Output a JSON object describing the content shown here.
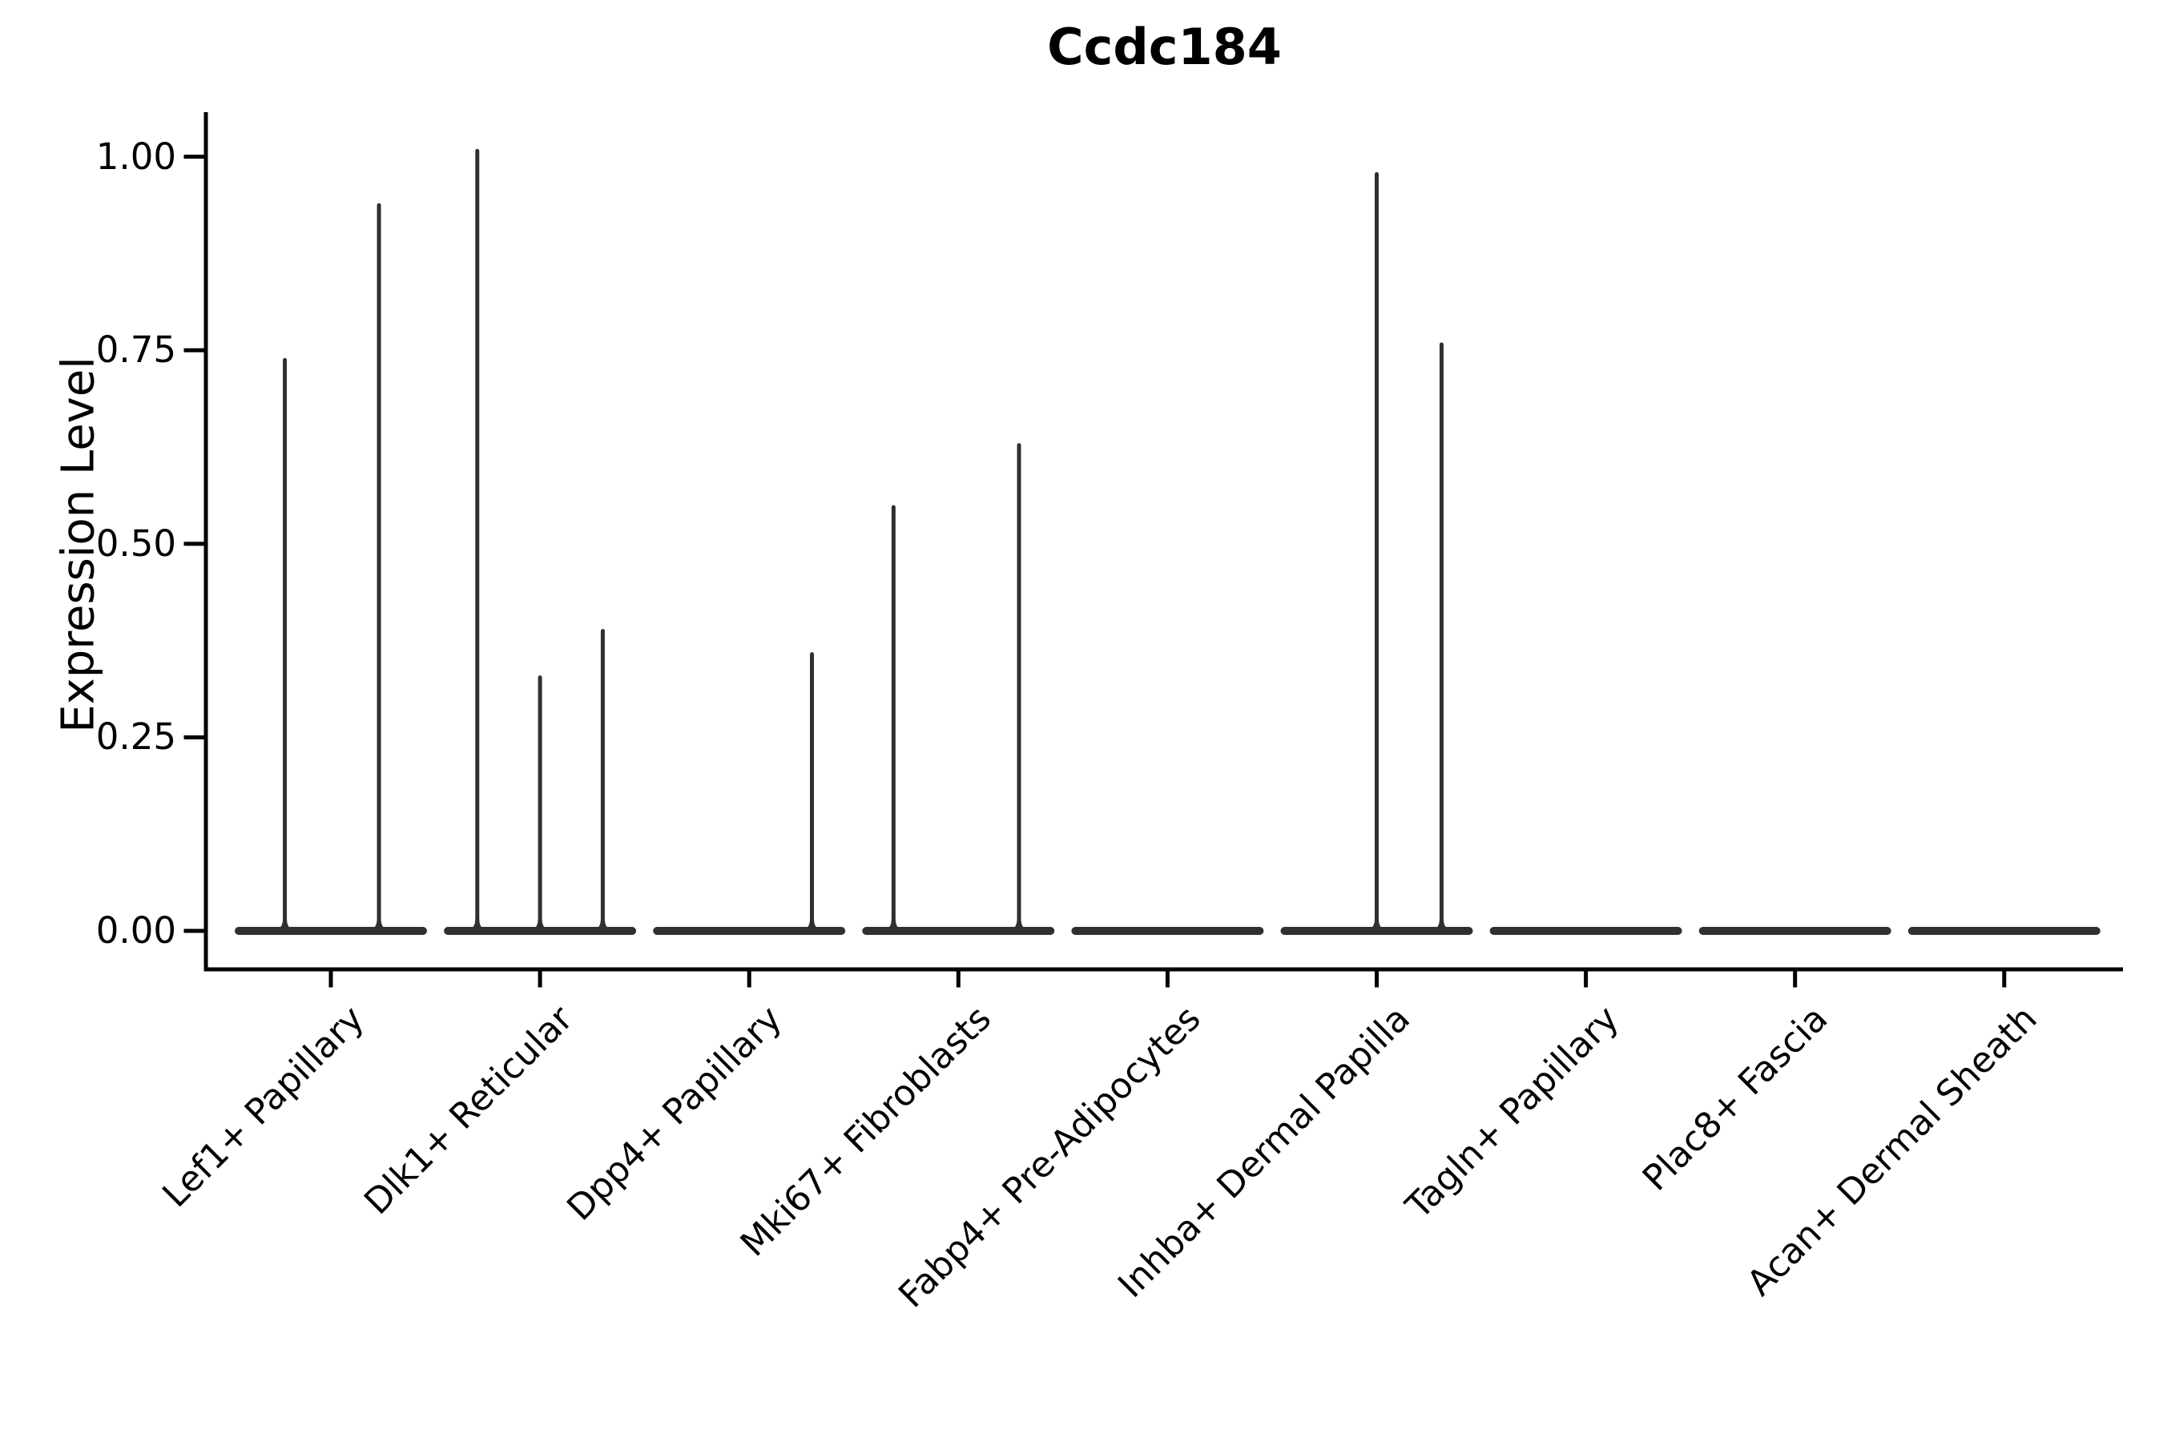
{
  "figure": {
    "title": "Ccdc184"
  },
  "chart_data": {
    "type": "violin",
    "title": "Ccdc184",
    "subtitle": "",
    "xlabel": "",
    "ylabel": "Expression Level",
    "ylim": [
      -0.05,
      1.06
    ],
    "grid": false,
    "legend": false,
    "yticks": [
      {
        "label": "1.00",
        "value": 1.0
      },
      {
        "label": "0.75",
        "value": 0.75
      },
      {
        "label": "0.50",
        "value": 0.5
      },
      {
        "label": "0.25",
        "value": 0.25
      },
      {
        "label": "0.00",
        "value": 0.0
      }
    ],
    "categories": [
      "Lef1+ Papillary",
      "Dlk1+ Reticular",
      "Dpp4+ Papillary",
      "Mki67+ Fibroblasts",
      "Fabp4+ Pre-Adipocytes",
      "Inhba+ Dermal Papilla",
      "Tagln+ Papillary",
      "Plac8+ Fascia",
      "Acan+ Dermal Sheath"
    ],
    "violins": [
      {
        "category": "Lef1+ Papillary",
        "baseline_value": 0.0,
        "spikes": [
          {
            "offset": -0.22,
            "value": 0.74
          },
          {
            "offset": 0.23,
            "value": 0.94
          }
        ]
      },
      {
        "category": "Dlk1+ Reticular",
        "baseline_value": 0.0,
        "spikes": [
          {
            "offset": -0.3,
            "value": 1.01
          },
          {
            "offset": 0.0,
            "value": 0.33
          },
          {
            "offset": 0.3,
            "value": 0.39
          }
        ]
      },
      {
        "category": "Dpp4+ Papillary",
        "baseline_value": 0.0,
        "spikes": [
          {
            "offset": 0.3,
            "value": 0.36
          }
        ]
      },
      {
        "category": "Mki67+ Fibroblasts",
        "baseline_value": 0.0,
        "spikes": [
          {
            "offset": -0.31,
            "value": 0.55
          },
          {
            "offset": 0.29,
            "value": 0.63
          }
        ]
      },
      {
        "category": "Fabp4+ Pre-Adipocytes",
        "baseline_value": 0.0,
        "spikes": []
      },
      {
        "category": "Inhba+ Dermal Papilla",
        "baseline_value": 0.0,
        "spikes": [
          {
            "offset": 0.0,
            "value": 0.98
          },
          {
            "offset": 0.31,
            "value": 0.76
          }
        ]
      },
      {
        "category": "Tagln+ Papillary",
        "baseline_value": 0.0,
        "spikes": []
      },
      {
        "category": "Plac8+ Fascia",
        "baseline_value": 0.0,
        "spikes": []
      },
      {
        "category": "Acan+ Dermal Sheath",
        "baseline_value": 0.0,
        "spikes": []
      }
    ],
    "colors": {
      "violin": "#303030",
      "axis": "#000000",
      "text": "#000000",
      "background": "#ffffff"
    }
  }
}
